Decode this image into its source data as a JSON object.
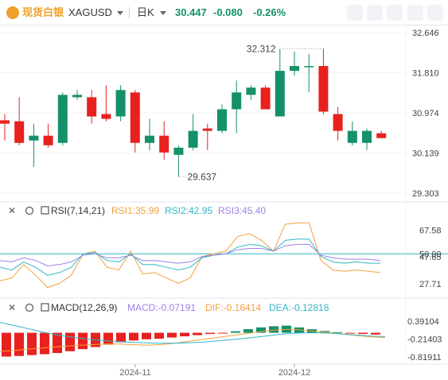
{
  "toolbar": {
    "brand": "现货白银",
    "symbol": "XAGUSD",
    "period": "日K",
    "price": "30.447",
    "change": "-0.080",
    "change_pct": "-0.26%",
    "brand_color": "#f0a02a",
    "up_color": "#14906a",
    "down_color": "#e8211f",
    "icons": [
      "line-style-icon",
      "indicator-icon",
      "candle-type-icon",
      "expand-icon",
      "close-icon"
    ]
  },
  "chart_data": [
    {
      "type": "candlestick",
      "symbol": "XAGUSD",
      "period": "日K",
      "x_labels": [
        "2024-11",
        "2024-12"
      ],
      "y_ticks": [
        "32.646",
        "31.810",
        "30.974",
        "30.139",
        "29.303"
      ],
      "ylim": [
        29.303,
        32.646
      ],
      "annotations": {
        "high": "32.312",
        "low": "29.637"
      },
      "up_color": "#14906a",
      "down_color": "#e8211f",
      "candles": [
        {
          "o": 30.82,
          "h": 30.95,
          "l": 30.4,
          "c": 30.75
        },
        {
          "o": 30.8,
          "h": 31.3,
          "l": 30.3,
          "c": 30.35
        },
        {
          "o": 30.4,
          "h": 30.75,
          "l": 29.85,
          "c": 30.5
        },
        {
          "o": 30.5,
          "h": 30.75,
          "l": 30.25,
          "c": 30.3
        },
        {
          "o": 30.35,
          "h": 31.4,
          "l": 30.3,
          "c": 31.35
        },
        {
          "o": 31.3,
          "h": 31.45,
          "l": 31.25,
          "c": 31.35
        },
        {
          "o": 31.3,
          "h": 31.45,
          "l": 30.75,
          "c": 30.9
        },
        {
          "o": 30.95,
          "h": 31.55,
          "l": 30.8,
          "c": 30.85
        },
        {
          "o": 30.9,
          "h": 31.55,
          "l": 30.8,
          "c": 31.45
        },
        {
          "o": 31.4,
          "h": 31.45,
          "l": 30.15,
          "c": 30.35
        },
        {
          "o": 30.35,
          "h": 30.85,
          "l": 30.2,
          "c": 30.5
        },
        {
          "o": 30.5,
          "h": 30.8,
          "l": 30.0,
          "c": 30.15
        },
        {
          "o": 30.1,
          "h": 30.3,
          "l": 29.64,
          "c": 30.25
        },
        {
          "o": 30.25,
          "h": 30.95,
          "l": 30.2,
          "c": 30.6
        },
        {
          "o": 30.65,
          "h": 30.75,
          "l": 30.2,
          "c": 30.6
        },
        {
          "o": 30.6,
          "h": 31.15,
          "l": 30.55,
          "c": 31.05
        },
        {
          "o": 31.05,
          "h": 31.65,
          "l": 30.55,
          "c": 31.4
        },
        {
          "o": 31.35,
          "h": 31.55,
          "l": 31.25,
          "c": 31.5
        },
        {
          "o": 31.5,
          "h": 31.55,
          "l": 31.05,
          "c": 31.05
        },
        {
          "o": 30.9,
          "h": 32.31,
          "l": 30.9,
          "c": 31.85
        },
        {
          "o": 31.85,
          "h": 32.25,
          "l": 31.75,
          "c": 31.95
        },
        {
          "o": 31.95,
          "h": 32.2,
          "l": 31.4,
          "c": 31.95
        },
        {
          "o": 31.95,
          "h": 32.31,
          "l": 30.95,
          "c": 31.0
        },
        {
          "o": 30.95,
          "h": 31.1,
          "l": 30.4,
          "c": 30.6
        },
        {
          "o": 30.35,
          "h": 30.8,
          "l": 30.3,
          "c": 30.6
        },
        {
          "o": 30.35,
          "h": 30.65,
          "l": 30.2,
          "c": 30.6
        },
        {
          "o": 30.55,
          "h": 30.6,
          "l": 30.45,
          "c": 30.45
        }
      ]
    },
    {
      "type": "line",
      "indicator": "RSI(7,14,21)",
      "ylim": [
        20,
        75
      ],
      "y_ticks": [
        "67.58",
        "50.00",
        "47.65",
        "27.71"
      ],
      "reference_line": 50,
      "series": [
        {
          "name": "RSI1",
          "label": "RSI1:35.99",
          "color": "#f3a13b",
          "values": [
            30,
            32,
            42,
            34,
            25,
            28,
            34,
            50,
            52,
            40,
            38,
            52,
            35,
            36,
            32,
            28,
            32,
            48,
            50,
            52,
            63,
            65,
            60,
            52,
            72,
            73,
            73,
            45,
            38,
            37,
            38,
            37,
            36
          ]
        },
        {
          "name": "RSI2",
          "label": "RSI2:42.95",
          "color": "#2fb7c9",
          "values": [
            40,
            38,
            44,
            40,
            34,
            36,
            40,
            50,
            51,
            45,
            44,
            50,
            42,
            42,
            40,
            38,
            40,
            47,
            49,
            50,
            55,
            57,
            56,
            52,
            60,
            61,
            61,
            48,
            44,
            43,
            44,
            43,
            43
          ]
        },
        {
          "name": "RSI3",
          "label": "RSI3:45.40",
          "color": "#9e81e6",
          "values": [
            45,
            44,
            47,
            45,
            41,
            42,
            44,
            49,
            50,
            47,
            47,
            49,
            45,
            45,
            44,
            43,
            44,
            48,
            49,
            50,
            53,
            54,
            54,
            52,
            56,
            57,
            57,
            49,
            47,
            46,
            46,
            46,
            45
          ]
        }
      ]
    },
    {
      "type": "bar+line",
      "indicator": "MACD(12,26,9)",
      "ylim": [
        -1.0,
        0.55
      ],
      "y_ticks": [
        "0.39104",
        "-0.21403",
        "-0.81911"
      ],
      "series": [
        {
          "name": "MACD",
          "label": "MACD:-0.07191",
          "color": "#9e81e6",
          "values": [
            -0.9,
            -0.88,
            -0.8,
            -0.75,
            -0.65,
            -0.55,
            -0.45,
            -0.35,
            -0.28,
            -0.2,
            -0.18,
            -0.2,
            -0.18,
            -0.17,
            -0.14,
            -0.1,
            -0.06,
            -0.04,
            0.05,
            0.1,
            0.2,
            0.3,
            0.32,
            0.25,
            0.15,
            0.04,
            -0.02,
            -0.04,
            -0.06,
            -0.07
          ]
        },
        {
          "name": "DIF",
          "label": "DIF:-0.16414",
          "color": "#f3a13b",
          "values": [
            -0.62,
            -0.6,
            -0.55,
            -0.52,
            -0.48,
            -0.45,
            -0.42,
            -0.4,
            -0.38,
            -0.38,
            -0.4,
            -0.42,
            -0.4,
            -0.36,
            -0.3,
            -0.24,
            -0.18,
            -0.12,
            -0.06,
            0.0,
            0.06,
            0.1,
            0.12,
            0.08,
            0.04,
            0.0,
            -0.05,
            -0.1,
            -0.14,
            -0.16
          ]
        },
        {
          "name": "DEA",
          "label": "DEA:-0.12818",
          "color": "#2fb7c9",
          "values": [
            0.35,
            0.25,
            0.15,
            0.05,
            -0.05,
            -0.12,
            -0.18,
            -0.23,
            -0.27,
            -0.3,
            -0.32,
            -0.34,
            -0.35,
            -0.35,
            -0.34,
            -0.32,
            -0.29,
            -0.25,
            -0.21,
            -0.16,
            -0.11,
            -0.06,
            -0.02,
            0.0,
            0.0,
            -0.02,
            -0.05,
            -0.08,
            -0.11,
            -0.13
          ]
        }
      ],
      "histogram": [
        -0.8,
        -0.78,
        -0.75,
        -0.72,
        -0.68,
        -0.62,
        -0.55,
        -0.48,
        -0.4,
        -0.32,
        -0.26,
        -0.22,
        -0.2,
        -0.16,
        -0.12,
        -0.08,
        -0.04,
        -0.02,
        0.05,
        0.12,
        0.18,
        0.22,
        0.24,
        0.18,
        0.12,
        0.06,
        0.02,
        -0.02,
        -0.04,
        -0.06
      ]
    }
  ]
}
